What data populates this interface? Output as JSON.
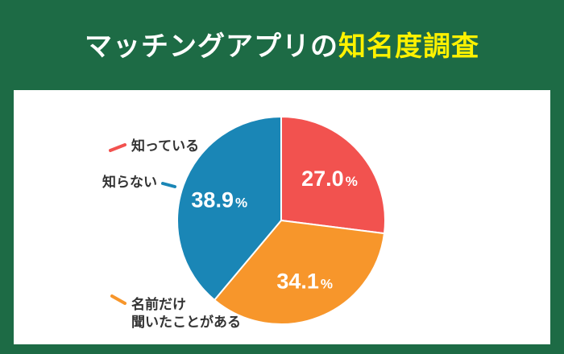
{
  "title": {
    "main": "マッチングアプリの",
    "accent": "知名度調査"
  },
  "colors": {
    "header_bg": "#1d6b45",
    "accent_text": "#fff200",
    "know": "#f2524f",
    "heard": "#f7962b",
    "dont_know": "#1a86b6"
  },
  "chart_data": {
    "type": "pie",
    "unit": "%",
    "slices": [
      {
        "label": "知っている",
        "value": 27.0,
        "value_text": "27.0",
        "color": "#f2524f"
      },
      {
        "label": "名前だけ\n聞いたことがある",
        "value": 34.1,
        "value_text": "34.1",
        "color": "#f7962b"
      },
      {
        "label": "知らない",
        "value": 38.9,
        "value_text": "38.9",
        "color": "#1a86b6"
      }
    ]
  }
}
